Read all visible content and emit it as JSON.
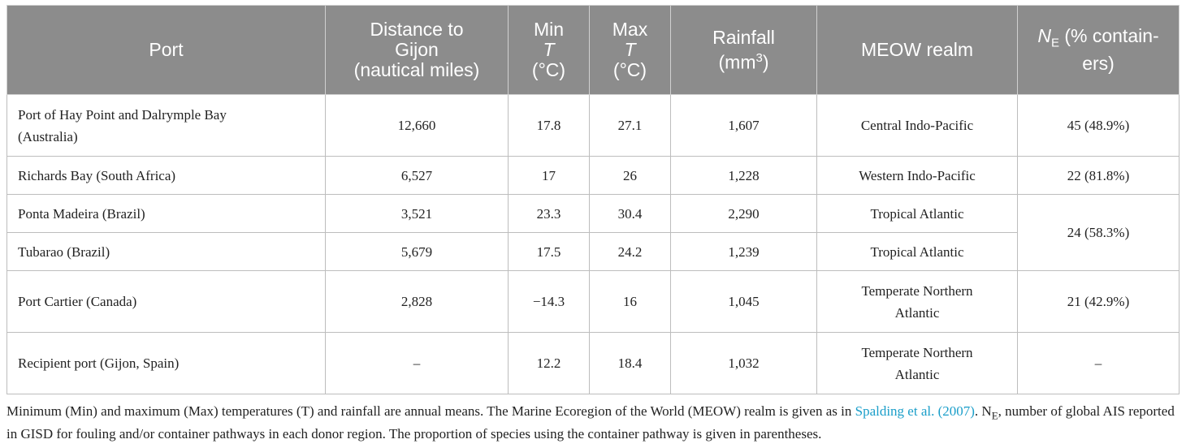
{
  "headers": {
    "port": "Port",
    "distance": [
      "Distance to",
      "Gijon",
      "(nautical miles)"
    ],
    "min_t": [
      "Min",
      "T",
      "(°C)"
    ],
    "max_t": [
      "Max",
      "T",
      "(°C)"
    ],
    "rainfall": [
      "Rainfall",
      "(mm",
      "3",
      ")"
    ],
    "meow": "MEOW realm",
    "ne": [
      "N",
      "E",
      " (% contain-",
      "ers)"
    ]
  },
  "rows": [
    {
      "port": [
        "Port of Hay Point and Dalrymple Bay",
        "(Australia)"
      ],
      "distance": "12,660",
      "min": "17.8",
      "max": "27.1",
      "rain": "1,607",
      "meow": [
        "Central Indo-Pacific"
      ],
      "ne": "45 (48.9%)"
    },
    {
      "port": [
        "Richards Bay (South Africa)"
      ],
      "distance": "6,527",
      "min": "17",
      "max": "26",
      "rain": "1,228",
      "meow": [
        "Western Indo-Pacific"
      ],
      "ne": "22 (81.8%)"
    },
    {
      "port": [
        "Ponta Madeira (Brazil)"
      ],
      "distance": "3,521",
      "min": "23.3",
      "max": "30.4",
      "rain": "2,290",
      "meow": [
        "Tropical Atlantic"
      ],
      "ne": "24 (58.3%)"
    },
    {
      "port": [
        "Tubarao (Brazil)"
      ],
      "distance": "5,679",
      "min": "17.5",
      "max": "24.2",
      "rain": "1,239",
      "meow": [
        "Tropical Atlantic"
      ]
    },
    {
      "port": [
        "Port Cartier (Canada)"
      ],
      "distance": "2,828",
      "min": "−14.3",
      "max": "16",
      "rain": "1,045",
      "meow": [
        "Temperate Northern",
        "Atlantic"
      ],
      "ne": "21 (42.9%)"
    },
    {
      "port": [
        "Recipient port (Gijon, Spain)"
      ],
      "distance": "–",
      "min": "12.2",
      "max": "18.4",
      "rain": "1,032",
      "meow": [
        "Temperate Northern",
        "Atlantic"
      ],
      "ne": "–"
    }
  ],
  "footnote": {
    "part1": "Minimum (Min) and maximum (Max) temperatures (T) and rainfall are annual means. The Marine Ecoregion of the World (MEOW) realm is given as in ",
    "link": "Spalding et al. (2007)",
    "part2": ". N",
    "sub": "E",
    "part3": ", number of global AIS reported in GISD for fouling and/or container pathways in each donor region. The proportion of species using the container pathway is given in parentheses."
  }
}
